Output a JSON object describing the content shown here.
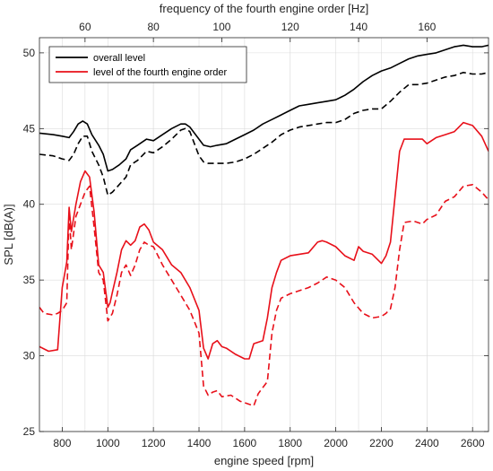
{
  "chart_data": {
    "type": "line",
    "xlabel": "engine speed [rpm]",
    "ylabel": "SPL [dB(A)]",
    "top_xlabel": "frequency of the fourth engine order [Hz]",
    "xlim": [
      700,
      2670
    ],
    "ylim": [
      25,
      51
    ],
    "top_xlim": [
      46.67,
      178.0
    ],
    "xticks": [
      800,
      1000,
      1200,
      1400,
      1600,
      1800,
      2000,
      2200,
      2400,
      2600
    ],
    "yticks": [
      25,
      30,
      35,
      40,
      45,
      50
    ],
    "top_xticks": [
      60,
      80,
      100,
      120,
      140,
      160
    ],
    "grid": true,
    "legend_position": "top-left",
    "colors": {
      "overall": "#000000",
      "order": "#e8101a"
    },
    "legend": [
      {
        "label": "overall level",
        "color": "#000000"
      },
      {
        "label": "level of the fourth engine order",
        "color": "#e8101a"
      }
    ],
    "series": [
      {
        "name": "overall level",
        "color": "#000000",
        "dash": "solid",
        "x": [
          700,
          760,
          800,
          830,
          850,
          870,
          890,
          910,
          930,
          960,
          980,
          1000,
          1020,
          1050,
          1080,
          1100,
          1130,
          1170,
          1200,
          1240,
          1280,
          1320,
          1340,
          1360,
          1380,
          1400,
          1420,
          1450,
          1480,
          1520,
          1560,
          1600,
          1640,
          1680,
          1720,
          1760,
          1800,
          1840,
          1880,
          1920,
          1960,
          2000,
          2040,
          2080,
          2120,
          2160,
          2200,
          2240,
          2280,
          2320,
          2360,
          2400,
          2440,
          2480,
          2520,
          2560,
          2600,
          2640,
          2670
        ],
        "y": [
          44.7,
          44.6,
          44.5,
          44.4,
          44.8,
          45.3,
          45.5,
          45.3,
          44.6,
          43.9,
          43.3,
          42.2,
          42.3,
          42.6,
          43.0,
          43.6,
          43.9,
          44.3,
          44.2,
          44.6,
          45.0,
          45.3,
          45.3,
          45.1,
          44.7,
          44.3,
          43.9,
          43.8,
          43.9,
          44.0,
          44.3,
          44.6,
          44.9,
          45.3,
          45.6,
          45.9,
          46.2,
          46.5,
          46.6,
          46.7,
          46.8,
          46.9,
          47.2,
          47.6,
          48.1,
          48.5,
          48.8,
          49.0,
          49.3,
          49.6,
          49.8,
          49.9,
          50.0,
          50.2,
          50.4,
          50.5,
          50.4,
          50.4,
          50.5
        ]
      },
      {
        "name": "",
        "color": "#000000",
        "dash": "dashed",
        "x": [
          700,
          760,
          800,
          830,
          850,
          870,
          890,
          910,
          930,
          960,
          980,
          1000,
          1020,
          1050,
          1080,
          1100,
          1130,
          1170,
          1200,
          1240,
          1280,
          1320,
          1340,
          1360,
          1380,
          1400,
          1420,
          1440,
          1480,
          1520,
          1560,
          1600,
          1640,
          1680,
          1720,
          1760,
          1800,
          1840,
          1880,
          1920,
          1960,
          2000,
          2040,
          2080,
          2120,
          2160,
          2200,
          2240,
          2280,
          2320,
          2360,
          2400,
          2440,
          2480,
          2520,
          2560,
          2600,
          2640,
          2670
        ],
        "y": [
          43.3,
          43.2,
          43.0,
          42.9,
          43.3,
          44.0,
          44.5,
          44.5,
          43.5,
          42.6,
          41.8,
          40.6,
          40.8,
          41.3,
          41.8,
          42.6,
          42.9,
          43.5,
          43.4,
          43.8,
          44.3,
          44.9,
          45.0,
          44.8,
          44.0,
          43.2,
          42.8,
          42.7,
          42.7,
          42.7,
          42.8,
          43.0,
          43.3,
          43.7,
          44.1,
          44.6,
          44.9,
          45.1,
          45.2,
          45.3,
          45.4,
          45.4,
          45.6,
          46.0,
          46.2,
          46.3,
          46.3,
          46.8,
          47.4,
          47.9,
          47.9,
          48.0,
          48.2,
          48.4,
          48.5,
          48.7,
          48.6,
          48.6,
          48.7
        ]
      },
      {
        "name": "level of the fourth engine order",
        "color": "#e8101a",
        "dash": "solid",
        "x": [
          700,
          740,
          780,
          800,
          820,
          830,
          840,
          860,
          880,
          900,
          920,
          940,
          960,
          980,
          1000,
          1010,
          1020,
          1040,
          1060,
          1080,
          1100,
          1120,
          1140,
          1160,
          1180,
          1200,
          1240,
          1280,
          1320,
          1360,
          1400,
          1420,
          1440,
          1460,
          1480,
          1500,
          1520,
          1560,
          1600,
          1620,
          1640,
          1680,
          1700,
          1720,
          1740,
          1760,
          1800,
          1840,
          1880,
          1920,
          1940,
          1960,
          2000,
          2040,
          2080,
          2100,
          2120,
          2160,
          2200,
          2220,
          2240,
          2260,
          2280,
          2300,
          2340,
          2380,
          2400,
          2440,
          2480,
          2520,
          2560,
          2600,
          2640,
          2670
        ],
        "y": [
          30.6,
          30.3,
          30.4,
          34.5,
          36.2,
          39.8,
          38.2,
          40.0,
          41.5,
          42.2,
          41.8,
          39.5,
          36.0,
          35.5,
          33.2,
          33.5,
          34.2,
          35.5,
          37.0,
          37.6,
          37.3,
          37.6,
          38.5,
          38.7,
          38.3,
          37.5,
          37.0,
          36.0,
          35.5,
          34.5,
          33.0,
          30.5,
          29.8,
          30.8,
          31.0,
          30.6,
          30.5,
          30.1,
          29.8,
          29.8,
          30.8,
          31.0,
          32.5,
          34.5,
          35.5,
          36.3,
          36.6,
          36.7,
          36.8,
          37.5,
          37.6,
          37.5,
          37.2,
          36.6,
          36.3,
          37.2,
          36.9,
          36.7,
          36.1,
          36.6,
          37.5,
          40.5,
          43.5,
          44.3,
          44.3,
          44.3,
          44.0,
          44.4,
          44.6,
          44.8,
          45.4,
          45.2,
          44.5,
          43.5
        ]
      },
      {
        "name": "",
        "color": "#e8101a",
        "dash": "dashed",
        "x": [
          700,
          720,
          760,
          780,
          800,
          820,
          830,
          840,
          860,
          880,
          900,
          920,
          940,
          960,
          980,
          1000,
          1020,
          1040,
          1060,
          1080,
          1100,
          1120,
          1140,
          1160,
          1180,
          1200,
          1240,
          1280,
          1320,
          1360,
          1400,
          1420,
          1440,
          1460,
          1480,
          1500,
          1540,
          1580,
          1620,
          1640,
          1660,
          1680,
          1700,
          1720,
          1740,
          1760,
          1800,
          1840,
          1880,
          1920,
          1960,
          2000,
          2040,
          2080,
          2120,
          2160,
          2200,
          2220,
          2240,
          2260,
          2280,
          2300,
          2340,
          2380,
          2400,
          2440,
          2480,
          2520,
          2560,
          2600,
          2640,
          2670
        ],
        "y": [
          33.2,
          32.8,
          32.7,
          32.8,
          33.0,
          33.5,
          39.5,
          37.0,
          39.2,
          40.0,
          40.8,
          41.2,
          38.5,
          35.5,
          35.0,
          32.3,
          32.8,
          34.0,
          35.5,
          36.0,
          35.3,
          36.0,
          37.0,
          37.5,
          37.3,
          37.2,
          36.0,
          35.0,
          34.0,
          33.0,
          31.5,
          28.0,
          27.4,
          27.6,
          27.7,
          27.3,
          27.4,
          27.0,
          26.8,
          26.7,
          27.5,
          27.9,
          28.3,
          31.5,
          33.0,
          33.8,
          34.1,
          34.3,
          34.5,
          34.8,
          35.2,
          35.0,
          34.5,
          33.5,
          32.8,
          32.5,
          32.6,
          32.8,
          33.1,
          34.5,
          37.0,
          38.8,
          38.9,
          38.7,
          39.0,
          39.3,
          40.2,
          40.5,
          41.2,
          41.3,
          40.8,
          40.3
        ]
      }
    ]
  }
}
